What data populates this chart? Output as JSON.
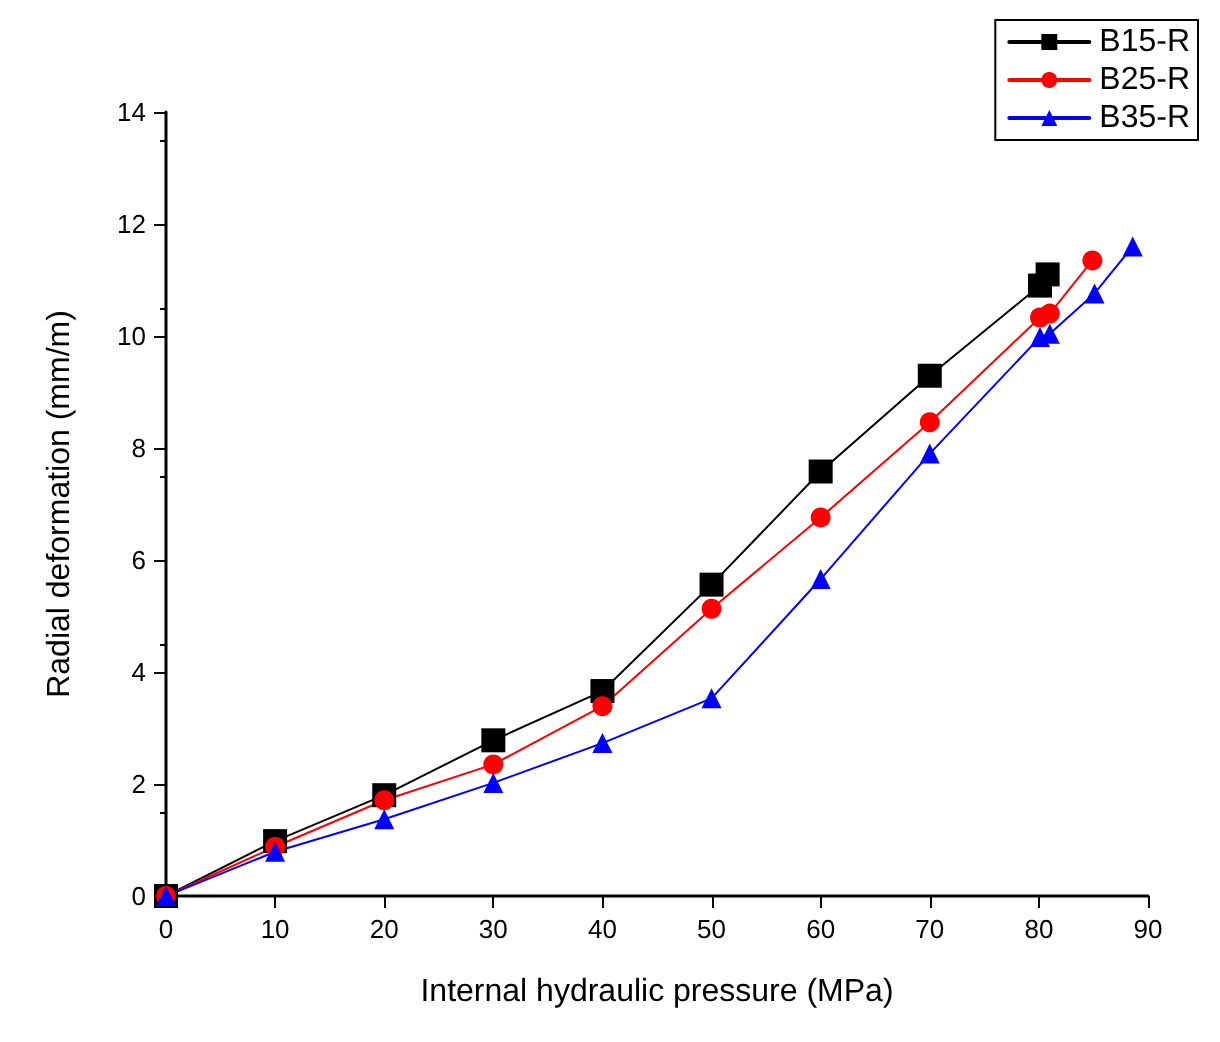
{
  "chart_data": {
    "type": "line",
    "xlabel": "Internal hydraulic pressure (MPa)",
    "ylabel": "Radial deformation (mm/m)",
    "xlim": [
      0,
      90
    ],
    "xticks": [
      0,
      10,
      20,
      30,
      40,
      50,
      60,
      70,
      80,
      90
    ],
    "ylim": [
      0,
      14
    ],
    "yticks": [
      0,
      2,
      4,
      6,
      8,
      10,
      12,
      14
    ],
    "grid": false,
    "legend": "top right",
    "line_style": "solid",
    "series": [
      {
        "name": "B15-R",
        "color": "#000000",
        "marker": "square",
        "x": [
          0,
          10,
          20,
          30,
          40,
          50,
          60,
          70,
          80.1,
          80.8
        ],
        "values": [
          0,
          0.98,
          1.8,
          2.78,
          3.66,
          5.56,
          7.58,
          9.29,
          10.9,
          11.1
        ]
      },
      {
        "name": "B25-R",
        "color": "#ff0000",
        "marker": "circle",
        "x": [
          0,
          10,
          20,
          30,
          40,
          50,
          60,
          70,
          80.1,
          81,
          84.9
        ],
        "values": [
          0,
          0.88,
          1.71,
          2.35,
          3.39,
          5.13,
          6.76,
          8.46,
          10.33,
          10.4,
          11.35
        ]
      },
      {
        "name": "B35-R",
        "color": "#0000ff",
        "marker": "triangle",
        "x": [
          0,
          10,
          20,
          30,
          40,
          50,
          60,
          70,
          80.1,
          81,
          85.1,
          88.6
        ],
        "values": [
          0,
          0.79,
          1.37,
          2.02,
          2.73,
          3.53,
          5.66,
          7.9,
          9.98,
          10.04,
          10.76,
          11.6
        ]
      }
    ]
  }
}
